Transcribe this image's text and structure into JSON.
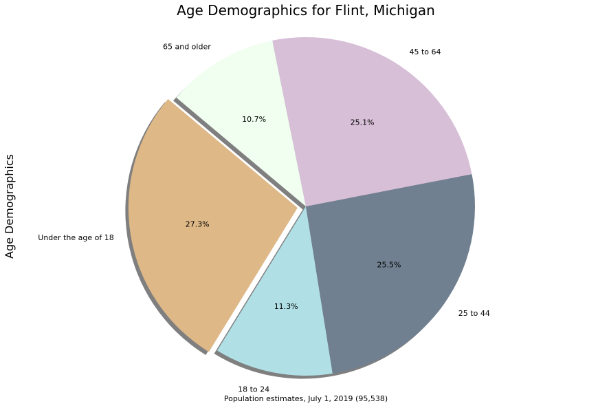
{
  "chart_data": {
    "type": "pie",
    "title": "Age Demographics for Flint, Michigan",
    "ylabel": "Age Demographics",
    "xlabel": "Population estimates, July 1, 2019 (95,538)",
    "slices": [
      {
        "label": "Under the age of 18",
        "value": 27.3,
        "pct_label": "27.3%",
        "color": "#DEB887",
        "explode": true
      },
      {
        "label": "18 to 24",
        "value": 11.3,
        "pct_label": "11.3%",
        "color": "#B0E0E6",
        "explode": false
      },
      {
        "label": "25 to 44",
        "value": 25.5,
        "pct_label": "25.5%",
        "color": "#708090",
        "explode": false
      },
      {
        "label": "45 to 64",
        "value": 25.1,
        "pct_label": "25.1%",
        "color": "#D8BFD8",
        "explode": false
      },
      {
        "label": "65 and older",
        "value": 10.7,
        "pct_label": "10.7%",
        "color": "#F0FFF0",
        "explode": false
      }
    ],
    "start_angle_deg": 140,
    "shadow": true
  }
}
